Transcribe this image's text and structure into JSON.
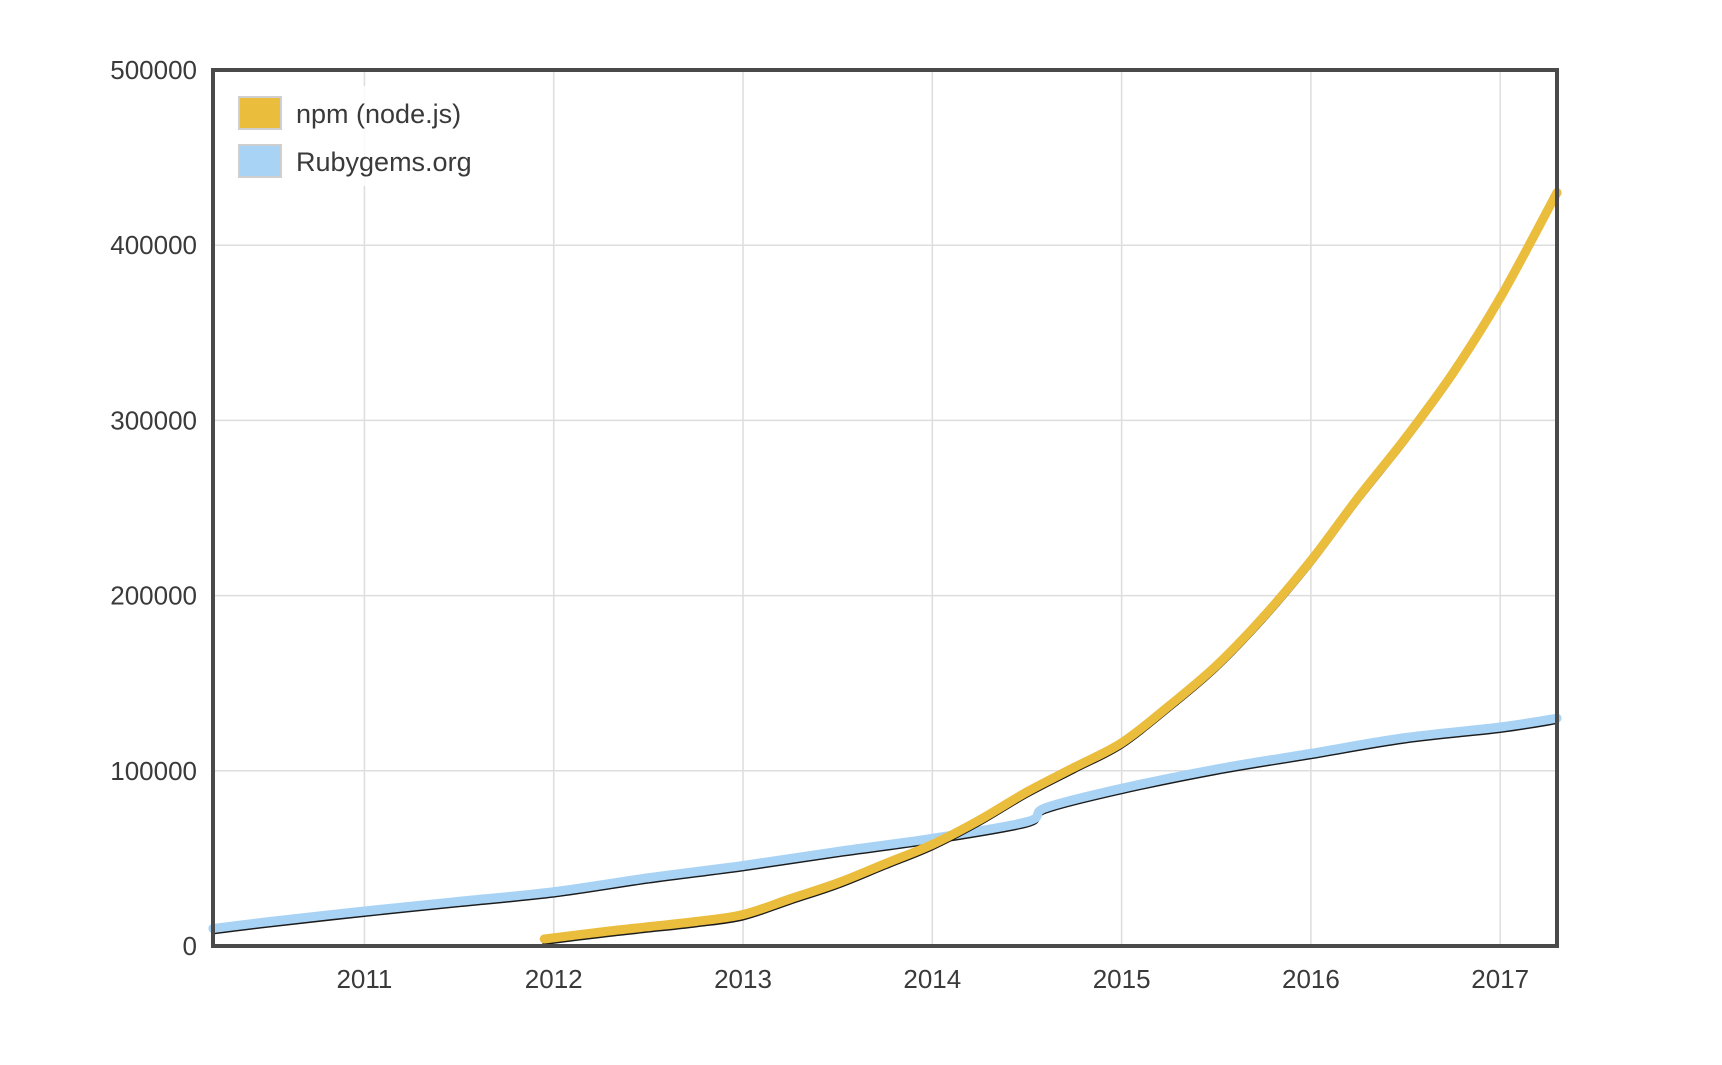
{
  "chart_data": {
    "type": "line",
    "title": "",
    "xlabel": "",
    "ylabel": "",
    "xlim": [
      2010.2,
      2017.3
    ],
    "ylim": [
      0,
      500000
    ],
    "grid": true,
    "legend_position": "top-left",
    "x_ticks": [
      2011,
      2012,
      2013,
      2014,
      2015,
      2016,
      2017
    ],
    "x_tick_labels": [
      "2011",
      "2012",
      "2013",
      "2014",
      "2015",
      "2016",
      "2017"
    ],
    "y_ticks": [
      0,
      100000,
      200000,
      300000,
      400000,
      500000
    ],
    "y_tick_labels": [
      "0",
      "100000",
      "200000",
      "300000",
      "400000",
      "500000"
    ],
    "series": [
      {
        "name": "npm (node.js)",
        "color": "#EBBD3C",
        "x": [
          2011.95,
          2012.25,
          2012.5,
          2012.75,
          2013.0,
          2013.25,
          2013.5,
          2013.75,
          2014.0,
          2014.25,
          2014.5,
          2014.75,
          2015.0,
          2015.25,
          2015.5,
          2015.75,
          2016.0,
          2016.25,
          2016.5,
          2016.75,
          2017.0,
          2017.3
        ],
        "values": [
          4000,
          8000,
          11000,
          14000,
          18000,
          27000,
          36000,
          47000,
          58000,
          72000,
          88000,
          102000,
          116000,
          137000,
          160000,
          188000,
          220000,
          256000,
          290000,
          327000,
          370000,
          430000
        ]
      },
      {
        "name": "Rubygems.org",
        "color": "#A8D3F5",
        "x": [
          2010.2,
          2010.5,
          2011.0,
          2011.5,
          2012.0,
          2012.5,
          2013.0,
          2013.5,
          2014.0,
          2014.5,
          2014.6,
          2015.0,
          2015.5,
          2016.0,
          2016.5,
          2017.0,
          2017.3
        ],
        "values": [
          10000,
          14000,
          20000,
          25500,
          31000,
          39000,
          46000,
          54000,
          61500,
          71000,
          79000,
          90000,
          101000,
          110000,
          119000,
          125000,
          130000
        ]
      }
    ]
  }
}
